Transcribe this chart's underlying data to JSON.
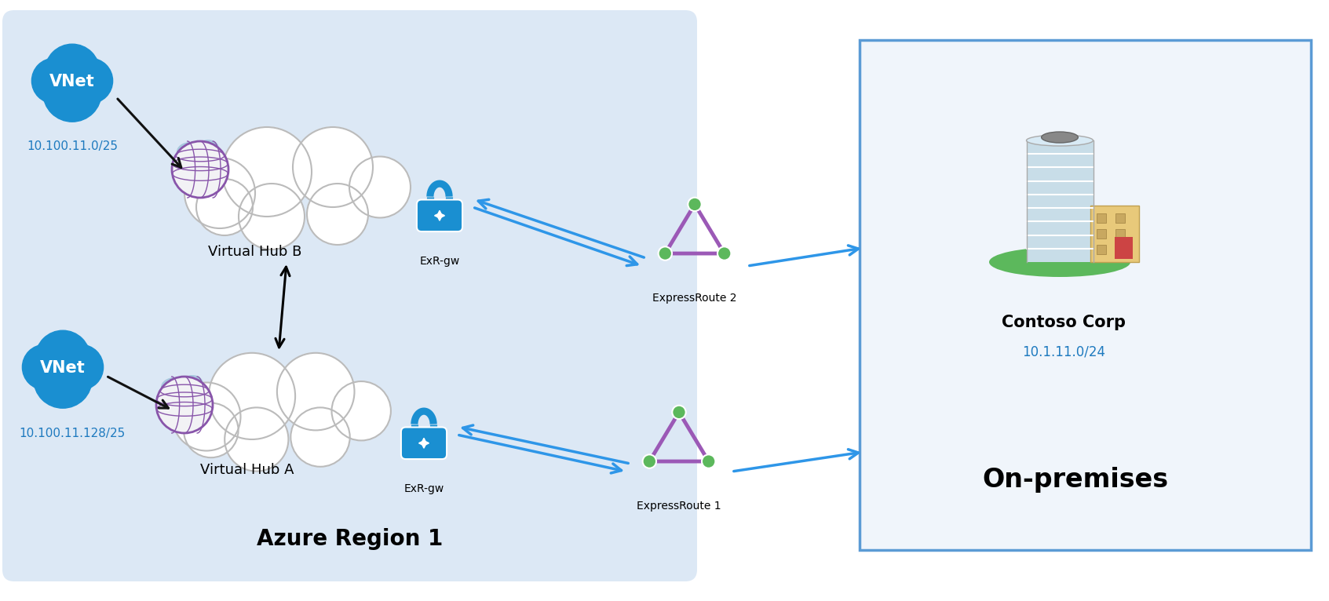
{
  "bg_color": "#ffffff",
  "azure_region_bg": "#dce8f5",
  "azure_region_label": "Azure Region 1",
  "on_premises_bg": "#f0f5fb",
  "on_premises_border": "#5b9bd5",
  "on_premises_label": "On-premises",
  "contoso_label": "Contoso Corp",
  "contoso_ip": "10.1.11.0/24",
  "vnet_top_label": "VNet",
  "vnet_top_ip": "10.100.11.0/25",
  "vnet_bottom_label": "VNet",
  "vnet_bottom_ip": "10.100.11.128/25",
  "hub_b_label": "Virtual Hub B",
  "hub_a_label": "Virtual Hub A",
  "exr_gw_label": "ExR-gw",
  "er2_label": "ExpressRoute 2",
  "er1_label": "ExpressRoute 1",
  "vnet_color": "#1a8fd1",
  "arrow_blue": "#2e96e8",
  "arrow_black": "#111111",
  "triangle_stroke": "#9b59b6",
  "node_color": "#5cb85c",
  "lock_color": "#1a8fd1",
  "ip_color": "#1e7abf",
  "region_label_size": 20,
  "hub_label_size": 13,
  "vnet_label_size": 15,
  "ip_label_size": 11,
  "onprem_label_size": 24,
  "contoso_label_size": 15,
  "exr_label_size": 10
}
